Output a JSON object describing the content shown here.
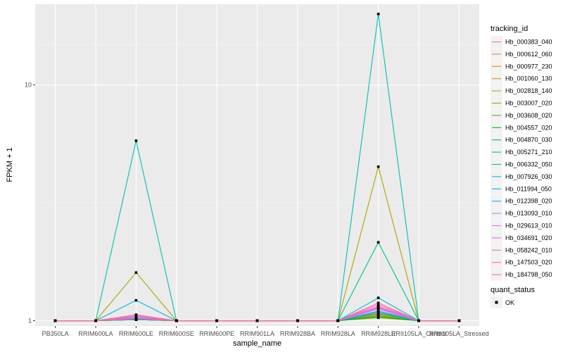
{
  "chart_data": {
    "type": "line",
    "xlabel": "sample_name",
    "ylabel": "FPKM + 1",
    "y_scale": "log10",
    "ylim": [
      0.95,
      22
    ],
    "y_ticks": [
      1,
      10
    ],
    "y_tick_labels": [
      "1",
      "10"
    ],
    "grid": true,
    "legend_position": "right",
    "categories": [
      "PB350LA",
      "RRIM600LA",
      "RRIM600LE",
      "RRIM600SE",
      "RRIM600PE",
      "RRIM901LA",
      "RRIM928BA",
      "RRIM928LA",
      "RRIM928LE",
      "RRII105LA_Control",
      "RRII105LA_Stressed"
    ],
    "legend": {
      "title": "tracking_id",
      "shape_title": "quant_status",
      "shape_label": "OK"
    },
    "series": [
      {
        "name": "Hb_000383_040",
        "color": "#F8766D",
        "values": [
          1,
          1,
          1.01,
          1,
          1,
          1,
          1,
          1,
          1.03,
          1,
          1
        ]
      },
      {
        "name": "Hb_000612_060",
        "color": "#EC823C",
        "values": [
          1,
          1,
          1.01,
          1,
          1,
          1,
          1,
          1,
          1.06,
          1,
          1
        ]
      },
      {
        "name": "Hb_000977_230",
        "color": "#DB8E00",
        "values": [
          1,
          1,
          1.02,
          1,
          1,
          1,
          1,
          1,
          1.04,
          1,
          1
        ]
      },
      {
        "name": "Hb_001060_130",
        "color": "#C79800",
        "values": [
          1,
          1,
          1.01,
          1,
          1,
          1,
          1,
          1,
          1.08,
          1,
          1
        ]
      },
      {
        "name": "Hb_002818_140",
        "color": "#AEA200",
        "values": [
          1,
          1,
          1.6,
          1,
          1,
          1,
          1,
          1,
          4.5,
          1,
          1
        ]
      },
      {
        "name": "Hb_003007_020",
        "color": "#8FAA00",
        "values": [
          1,
          1,
          1.02,
          1,
          1,
          1,
          1,
          1,
          1.05,
          1,
          1
        ]
      },
      {
        "name": "Hb_003608_020",
        "color": "#64B200",
        "values": [
          1,
          1,
          1.01,
          1,
          1,
          1,
          1,
          1,
          1.03,
          1,
          1
        ]
      },
      {
        "name": "Hb_004557_020",
        "color": "#00B81B",
        "values": [
          1,
          1,
          1.01,
          1,
          1,
          1,
          1,
          1,
          1.04,
          1,
          1
        ]
      },
      {
        "name": "Hb_004870_030",
        "color": "#00BD5C",
        "values": [
          1,
          1,
          1.02,
          1,
          1,
          1,
          1,
          1,
          1.07,
          1,
          1
        ]
      },
      {
        "name": "Hb_005271_210",
        "color": "#00C08D",
        "values": [
          1,
          1,
          1.01,
          1,
          1,
          1,
          1,
          1,
          2.15,
          1,
          1
        ]
      },
      {
        "name": "Hb_006332_050",
        "color": "#00C1B2",
        "values": [
          1,
          1,
          5.8,
          1,
          1,
          1,
          1,
          1,
          20,
          1,
          1
        ]
      },
      {
        "name": "Hb_007926_030",
        "color": "#00BCD6",
        "values": [
          1,
          1,
          1.22,
          1,
          1,
          1,
          1,
          1,
          1.25,
          1,
          1
        ]
      },
      {
        "name": "Hb_011994_050",
        "color": "#00B3F2",
        "values": [
          1,
          1,
          1.03,
          1,
          1,
          1,
          1,
          1,
          1.09,
          1,
          1
        ]
      },
      {
        "name": "Hb_012398_020",
        "color": "#29A3FF",
        "values": [
          1,
          1,
          1.02,
          1,
          1,
          1,
          1,
          1,
          1.1,
          1,
          1
        ]
      },
      {
        "name": "Hb_013093_010",
        "color": "#9C8DFF",
        "values": [
          1,
          1,
          1.04,
          1,
          1,
          1,
          1,
          1,
          1.13,
          1,
          1
        ]
      },
      {
        "name": "Hb_029613_010",
        "color": "#D277FF",
        "values": [
          1,
          1,
          1.03,
          1,
          1,
          1,
          1,
          1,
          1.12,
          1,
          1
        ]
      },
      {
        "name": "Hb_034691_020",
        "color": "#F166E8",
        "values": [
          1,
          1,
          1.05,
          1,
          1,
          1,
          1,
          1,
          1.15,
          1,
          1
        ]
      },
      {
        "name": "Hb_058242_010",
        "color": "#FF61C7",
        "values": [
          1,
          1,
          1.02,
          1,
          1,
          1,
          1,
          1,
          1.14,
          1,
          1
        ]
      },
      {
        "name": "Hb_147503_020",
        "color": "#FF689E",
        "values": [
          1,
          1,
          1.03,
          1,
          1,
          1,
          1,
          1,
          1.17,
          1,
          1
        ]
      },
      {
        "name": "Hb_184798_050",
        "color": "#FF6C91",
        "values": [
          1,
          1,
          1.06,
          1,
          1,
          1,
          1,
          1,
          1.19,
          1,
          1
        ]
      }
    ]
  }
}
